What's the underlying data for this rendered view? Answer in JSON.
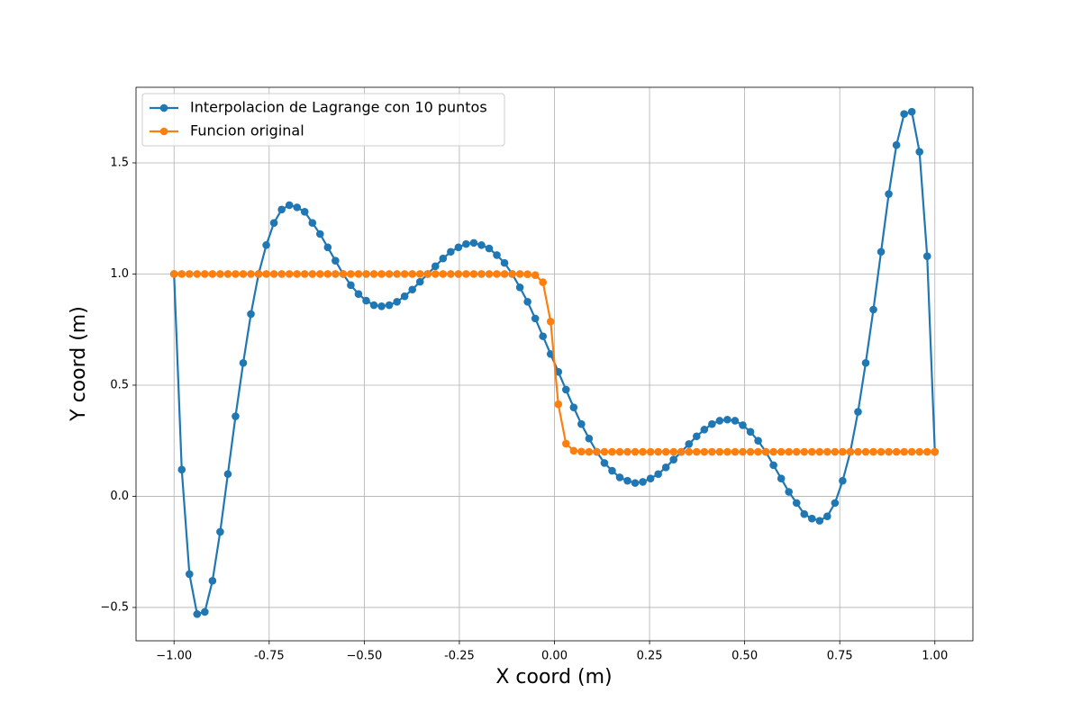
{
  "chart_data": {
    "type": "line",
    "xlabel": "X coord (m)",
    "ylabel": "Y coord (m)",
    "x": [
      -1,
      -0.9798,
      -0.9596,
      -0.9394,
      -0.9192,
      -0.899,
      -0.8788,
      -0.8586,
      -0.8384,
      -0.8182,
      -0.798,
      -0.7778,
      -0.7576,
      -0.7374,
      -0.7172,
      -0.697,
      -0.6768,
      -0.6566,
      -0.6364,
      -0.6162,
      -0.596,
      -0.5758,
      -0.5556,
      -0.5354,
      -0.5152,
      -0.4949,
      -0.4747,
      -0.4545,
      -0.4343,
      -0.4141,
      -0.3939,
      -0.3737,
      -0.3535,
      -0.3333,
      -0.3131,
      -0.2929,
      -0.2727,
      -0.2525,
      -0.2323,
      -0.2121,
      -0.1919,
      -0.1717,
      -0.1515,
      -0.1313,
      -0.1111,
      -0.0909,
      -0.0707,
      -0.0505,
      -0.0303,
      -0.0101,
      0.0101,
      0.0303,
      0.0505,
      0.0707,
      0.0909,
      0.1111,
      0.1313,
      0.1515,
      0.1717,
      0.1919,
      0.2121,
      0.2323,
      0.2525,
      0.2727,
      0.2929,
      0.3131,
      0.3333,
      0.3535,
      0.3737,
      0.3939,
      0.4141,
      0.4343,
      0.4545,
      0.4747,
      0.4949,
      0.5152,
      0.5354,
      0.5556,
      0.5758,
      0.596,
      0.6162,
      0.6364,
      0.6566,
      0.6768,
      0.697,
      0.7172,
      0.7374,
      0.7576,
      0.7778,
      0.798,
      0.8182,
      0.8384,
      0.8586,
      0.8788,
      0.899,
      0.9192,
      0.9394,
      0.9596,
      0.9798,
      1
    ],
    "series": [
      {
        "name": "Interpolacion de Lagrange con 10 puntos",
        "color": "#1f77b4",
        "values": [
          1.0,
          0.12,
          -0.35,
          -0.53,
          -0.52,
          -0.38,
          -0.16,
          0.1,
          0.36,
          0.6,
          0.82,
          1.0,
          1.13,
          1.23,
          1.29,
          1.31,
          1.3,
          1.28,
          1.23,
          1.18,
          1.12,
          1.06,
          1.0,
          0.95,
          0.91,
          0.88,
          0.86,
          0.855,
          0.86,
          0.875,
          0.9,
          0.93,
          0.965,
          1.0,
          1.035,
          1.07,
          1.1,
          1.12,
          1.135,
          1.14,
          1.13,
          1.115,
          1.085,
          1.05,
          1.0,
          0.94,
          0.875,
          0.8,
          0.72,
          0.64,
          0.56,
          0.48,
          0.4,
          0.325,
          0.26,
          0.2,
          0.15,
          0.115,
          0.085,
          0.07,
          0.06,
          0.065,
          0.08,
          0.1,
          0.13,
          0.165,
          0.2,
          0.235,
          0.27,
          0.3,
          0.325,
          0.34,
          0.345,
          0.34,
          0.32,
          0.29,
          0.25,
          0.2,
          0.14,
          0.08,
          0.02,
          -0.03,
          -0.08,
          -0.1,
          -0.11,
          -0.09,
          -0.03,
          0.07,
          0.2,
          0.38,
          0.6,
          0.84,
          1.1,
          1.36,
          1.58,
          1.72,
          1.73,
          1.55,
          1.08,
          0.2
        ]
      },
      {
        "name": "Funcion original",
        "color": "#ff7f0e",
        "values": [
          1.0,
          1.0,
          1.0,
          1.0,
          1.0,
          1.0,
          1.0,
          1.0,
          1.0,
          1.0,
          1.0,
          1.0,
          1.0,
          1.0,
          1.0,
          1.0,
          1.0,
          1.0,
          1.0,
          1.0,
          1.0,
          1.0,
          1.0,
          1.0,
          1.0,
          1.0,
          1.0,
          1.0,
          1.0,
          1.0,
          1.0,
          1.0,
          1.0,
          1.0,
          1.0,
          1.0,
          1.0,
          1.0,
          1.0,
          1.0,
          1.0,
          1.0,
          1.0,
          1.0,
          1.0,
          1.0,
          0.999,
          0.995,
          0.963,
          0.786,
          0.414,
          0.237,
          0.205,
          0.201,
          0.2,
          0.2,
          0.2,
          0.2,
          0.2,
          0.2,
          0.2,
          0.2,
          0.2,
          0.2,
          0.2,
          0.2,
          0.2,
          0.2,
          0.2,
          0.2,
          0.2,
          0.2,
          0.2,
          0.2,
          0.2,
          0.2,
          0.2,
          0.2,
          0.2,
          0.2,
          0.2,
          0.2,
          0.2,
          0.2,
          0.2,
          0.2,
          0.2,
          0.2,
          0.2,
          0.2,
          0.2,
          0.2,
          0.2,
          0.2,
          0.2,
          0.2,
          0.2,
          0.2,
          0.2,
          0.2
        ]
      }
    ],
    "xlim": [
      -1.1,
      1.1
    ],
    "xticks": [
      {
        "value": -1,
        "label": "−1.00"
      },
      -0.75,
      {
        "value": -0.5,
        "label": "−0.50"
      },
      -0.25,
      {
        "value": 0,
        "label": "0.00"
      },
      0.25,
      {
        "value": 0.5,
        "label": "0.50"
      },
      0.75,
      {
        "value": 1,
        "label": "1.00"
      }
    ],
    "ylim": [
      -0.65,
      1.84
    ],
    "yticks": [
      {
        "value": -0.5,
        "label": "−0.5"
      },
      {
        "value": 0,
        "label": "0.0"
      },
      0.5,
      {
        "value": 1,
        "label": "1.0"
      },
      1.5
    ],
    "grid": true,
    "legend": "upper-left"
  }
}
